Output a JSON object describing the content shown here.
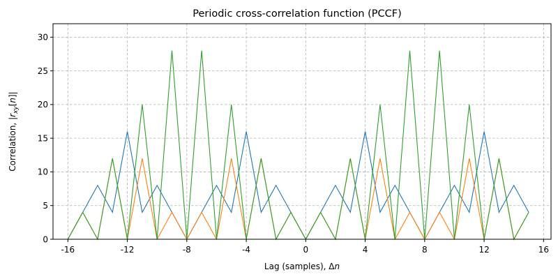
{
  "chart_data": {
    "type": "line",
    "title": "Periodic cross-correlation function (PCCF)",
    "xlabel_prefix": "Lag (samples), Δ",
    "xlabel_var": "n",
    "ylabel_prefix": "Correlation, |",
    "ylabel_r": "r",
    "ylabel_sub": "xy",
    "ylabel_open": "[",
    "ylabel_n": "n",
    "ylabel_close": "]|",
    "xlim": [
      -17,
      16.5
    ],
    "ylim": [
      0,
      32
    ],
    "xticks": [
      -16,
      -12,
      -8,
      -4,
      0,
      4,
      8,
      12,
      16
    ],
    "xtick_labels": [
      "-16",
      "-12",
      "-8",
      "-4",
      "0",
      "4",
      "8",
      "12",
      "16"
    ],
    "yticks": [
      0,
      5,
      10,
      15,
      20,
      25,
      30
    ],
    "ytick_labels": [
      "0",
      "5",
      "10",
      "15",
      "20",
      "25",
      "30"
    ],
    "grid": true,
    "x": [
      -16,
      -15,
      -14,
      -13,
      -12,
      -11,
      -10,
      -9,
      -8,
      -7,
      -6,
      -5,
      -4,
      -3,
      -2,
      -1,
      0,
      1,
      2,
      3,
      4,
      5,
      6,
      7,
      8,
      9,
      10,
      11,
      12,
      13,
      14,
      15
    ],
    "series": [
      {
        "color": "#1f77b4",
        "values": [
          0,
          4,
          8,
          4,
          16,
          4,
          8,
          4,
          0,
          4,
          8,
          4,
          16,
          4,
          8,
          4,
          0,
          4,
          8,
          4,
          16,
          4,
          8,
          4,
          0,
          4,
          8,
          4,
          16,
          4,
          8,
          4
        ]
      },
      {
        "color": "#ff7f0e",
        "values": [
          0,
          4,
          0,
          12,
          0,
          12,
          0,
          4,
          0,
          4,
          0,
          12,
          0,
          12,
          0,
          4,
          0,
          4,
          0,
          12,
          0,
          12,
          0,
          4,
          0,
          4,
          0,
          12,
          0,
          12,
          0,
          4
        ]
      },
      {
        "color": "#2ca02c",
        "values": [
          0,
          4,
          0,
          12,
          0,
          20,
          0,
          28,
          0,
          28,
          0,
          20,
          0,
          12,
          0,
          4,
          0,
          4,
          0,
          12,
          0,
          20,
          0,
          28,
          0,
          28,
          0,
          20,
          0,
          12,
          0,
          4
        ]
      }
    ]
  }
}
